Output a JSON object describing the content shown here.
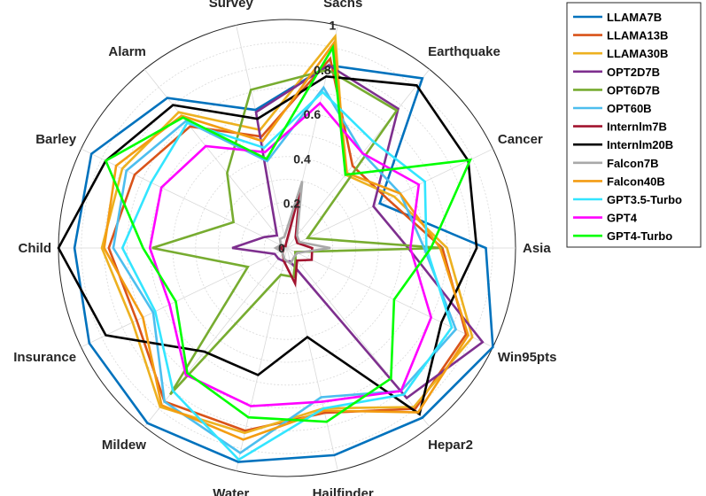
{
  "chart_data": {
    "type": "radar",
    "title": "",
    "categories": [
      "Sachs",
      "Earthquake",
      "Cancer",
      "Asia",
      "Win95pts",
      "Hepar2",
      "Hailfinder",
      "Water",
      "Mildew",
      "Insurance",
      "Child",
      "Barley",
      "Alarm",
      "Survey"
    ],
    "rlim": [
      0,
      1
    ],
    "rticks": [
      0,
      0.2,
      0.4,
      0.6,
      0.8,
      1
    ],
    "rtick_labels": [
      "0",
      "0.2",
      "0.4",
      "0.6",
      "0.8",
      "1"
    ],
    "grid": true,
    "legend_position": "top-right outside",
    "series": [
      {
        "name": "LLAMA7B",
        "color": "#0072BD",
        "values": [
          0.82,
          0.95,
          0.45,
          0.87,
          1.0,
          0.95,
          0.93,
          0.96,
          0.98,
          0.96,
          0.93,
          0.95,
          0.84,
          0.62
        ]
      },
      {
        "name": "LLAMA13B",
        "color": "#D95319",
        "values": [
          0.85,
          0.46,
          0.49,
          0.68,
          0.87,
          0.9,
          0.74,
          0.82,
          0.86,
          0.73,
          0.78,
          0.74,
          0.68,
          0.5
        ]
      },
      {
        "name": "LLAMA30B",
        "color": "#EDB120",
        "values": [
          0.95,
          0.41,
          0.52,
          0.7,
          0.9,
          0.89,
          0.72,
          0.83,
          0.89,
          0.75,
          0.81,
          0.8,
          0.76,
          0.53
        ]
      },
      {
        "name": "OPT2D7B",
        "color": "#7E2F8E",
        "values": [
          0.82,
          0.78,
          0.42,
          0.53,
          0.95,
          0.84,
          0.06,
          0.06,
          0.06,
          0.06,
          0.24,
          0.11,
          0.07,
          0.61
        ]
      },
      {
        "name": "OPT6D7B",
        "color": "#77AC30",
        "values": [
          0.8,
          0.77,
          0.1,
          0.68,
          0.04,
          0.06,
          0.13,
          0.12,
          0.82,
          0.19,
          0.59,
          0.26,
          0.42,
          0.71
        ]
      },
      {
        "name": "OPT60B",
        "color": "#4DBEEE",
        "values": [
          0.72,
          0.53,
          0.55,
          0.6,
          0.82,
          0.8,
          0.67,
          0.92,
          0.86,
          0.65,
          0.76,
          0.78,
          0.71,
          0.39
        ]
      },
      {
        "name": "Internlm7B",
        "color": "#A2142F",
        "values": [
          0.25,
          0.06,
          0.05,
          0.11,
          0.12,
          0.07,
          0.16,
          0.06,
          0.03,
          0.02,
          0.03,
          0.02,
          0.01,
          0.02
        ]
      },
      {
        "name": "Internlm20B",
        "color": "#000000",
        "values": [
          0.77,
          0.91,
          0.88,
          0.83,
          0.75,
          0.93,
          0.4,
          0.57,
          0.58,
          0.88,
          1.0,
          0.88,
          0.8,
          0.58
        ]
      },
      {
        "name": "Falcon7B",
        "color": "#A9A9A9",
        "values": [
          0.3,
          0.07,
          0.06,
          0.19,
          0.05,
          0.05,
          0.07,
          0.05,
          0.03,
          0.03,
          0.05,
          0.03,
          0.05,
          0.05
        ]
      },
      {
        "name": "Falcon40B",
        "color": "#F39C12",
        "values": [
          0.92,
          0.42,
          0.55,
          0.67,
          0.88,
          0.92,
          0.73,
          0.86,
          0.88,
          0.7,
          0.8,
          0.83,
          0.74,
          0.48
        ]
      },
      {
        "name": "GPT3.5-Turbo",
        "color": "#33E5FF",
        "values": [
          0.7,
          0.6,
          0.67,
          0.61,
          0.8,
          0.82,
          0.72,
          0.95,
          0.8,
          0.64,
          0.72,
          0.66,
          0.7,
          0.45
        ]
      },
      {
        "name": "GPT4",
        "color": "#FF00FF",
        "values": [
          0.65,
          0.53,
          0.64,
          0.54,
          0.7,
          0.8,
          0.69,
          0.71,
          0.71,
          0.57,
          0.6,
          0.61,
          0.57,
          0.43
        ]
      },
      {
        "name": "GPT4-Turbo",
        "color": "#00FF00",
        "values": [
          0.9,
          0.41,
          0.89,
          0.63,
          0.52,
          0.73,
          0.78,
          0.76,
          0.7,
          0.54,
          0.63,
          0.88,
          0.73,
          0.4
        ]
      }
    ]
  }
}
